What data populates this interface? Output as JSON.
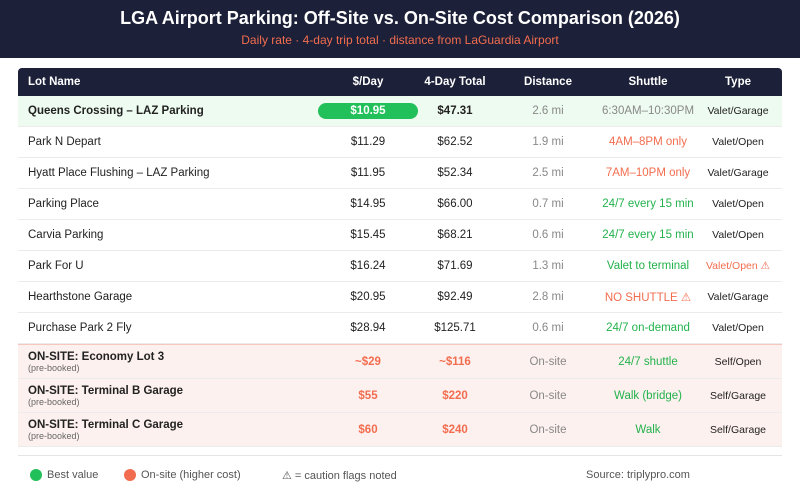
{
  "header": {
    "title": "LGA Airport Parking: Off-Site vs. On-Site Cost Comparison (2026)",
    "subtitle": "Daily rate · 4-day trip total · distance from LaGuardia Airport"
  },
  "table": {
    "columns": [
      "Lot Name",
      "$/Day",
      "4-Day Total",
      "Distance",
      "Shuttle",
      "Type"
    ],
    "rows": [
      {
        "lot": "Queens Crossing – LAZ Parking",
        "per_day": "$10.95",
        "total": "$47.31",
        "distance": "2.6 mi",
        "shuttle": "6:30AM–10:30PM",
        "type": "Valet/Garage"
      },
      {
        "lot": "Park N Depart",
        "per_day": "$11.29",
        "total": "$62.52",
        "distance": "1.9 mi",
        "shuttle": "4AM–8PM only",
        "type": "Valet/Open"
      },
      {
        "lot": "Hyatt Place Flushing – LAZ Parking",
        "per_day": "$11.95",
        "total": "$52.34",
        "distance": "2.5 mi",
        "shuttle": "7AM–10PM only",
        "type": "Valet/Garage"
      },
      {
        "lot": "Parking Place",
        "per_day": "$14.95",
        "total": "$66.00",
        "distance": "0.7 mi",
        "shuttle": "24/7 every 15 min",
        "type": "Valet/Open"
      },
      {
        "lot": "Carvia Parking",
        "per_day": "$15.45",
        "total": "$68.21",
        "distance": "0.6 mi",
        "shuttle": "24/7 every 15 min",
        "type": "Valet/Open"
      },
      {
        "lot": "Park For U",
        "per_day": "$16.24",
        "total": "$71.69",
        "distance": "1.3 mi",
        "shuttle": "Valet to terminal",
        "type": "Valet/Open ⚠"
      },
      {
        "lot": "Hearthstone Garage",
        "per_day": "$20.95",
        "total": "$92.49",
        "distance": "2.8 mi",
        "shuttle": "NO SHUTTLE ⚠",
        "type": "Valet/Garage"
      },
      {
        "lot": "Purchase Park 2 Fly",
        "per_day": "$28.94",
        "total": "$125.71",
        "distance": "0.6 mi",
        "shuttle": "24/7 on-demand",
        "type": "Valet/Open"
      },
      {
        "lot": "ON-SITE: Economy Lot 3",
        "note": "(pre-booked)",
        "per_day": "~$29",
        "total": "~$116",
        "distance": "On-site",
        "shuttle": "24/7 shuttle",
        "type": "Self/Open"
      },
      {
        "lot": "ON-SITE: Terminal B Garage",
        "note": "(pre-booked)",
        "per_day": "$55",
        "total": "$220",
        "distance": "On-site",
        "shuttle": "Walk (bridge)",
        "type": "Self/Garage"
      },
      {
        "lot": "ON-SITE: Terminal C Garage",
        "note": "(pre-booked)",
        "per_day": "$60",
        "total": "$240",
        "distance": "On-site",
        "shuttle": "Walk",
        "type": "Self/Garage"
      }
    ]
  },
  "legend": {
    "items": [
      "Best value",
      "On-site (higher cost)",
      "⚠ = caution flags noted"
    ],
    "source": "Source: triplypro.com"
  }
}
